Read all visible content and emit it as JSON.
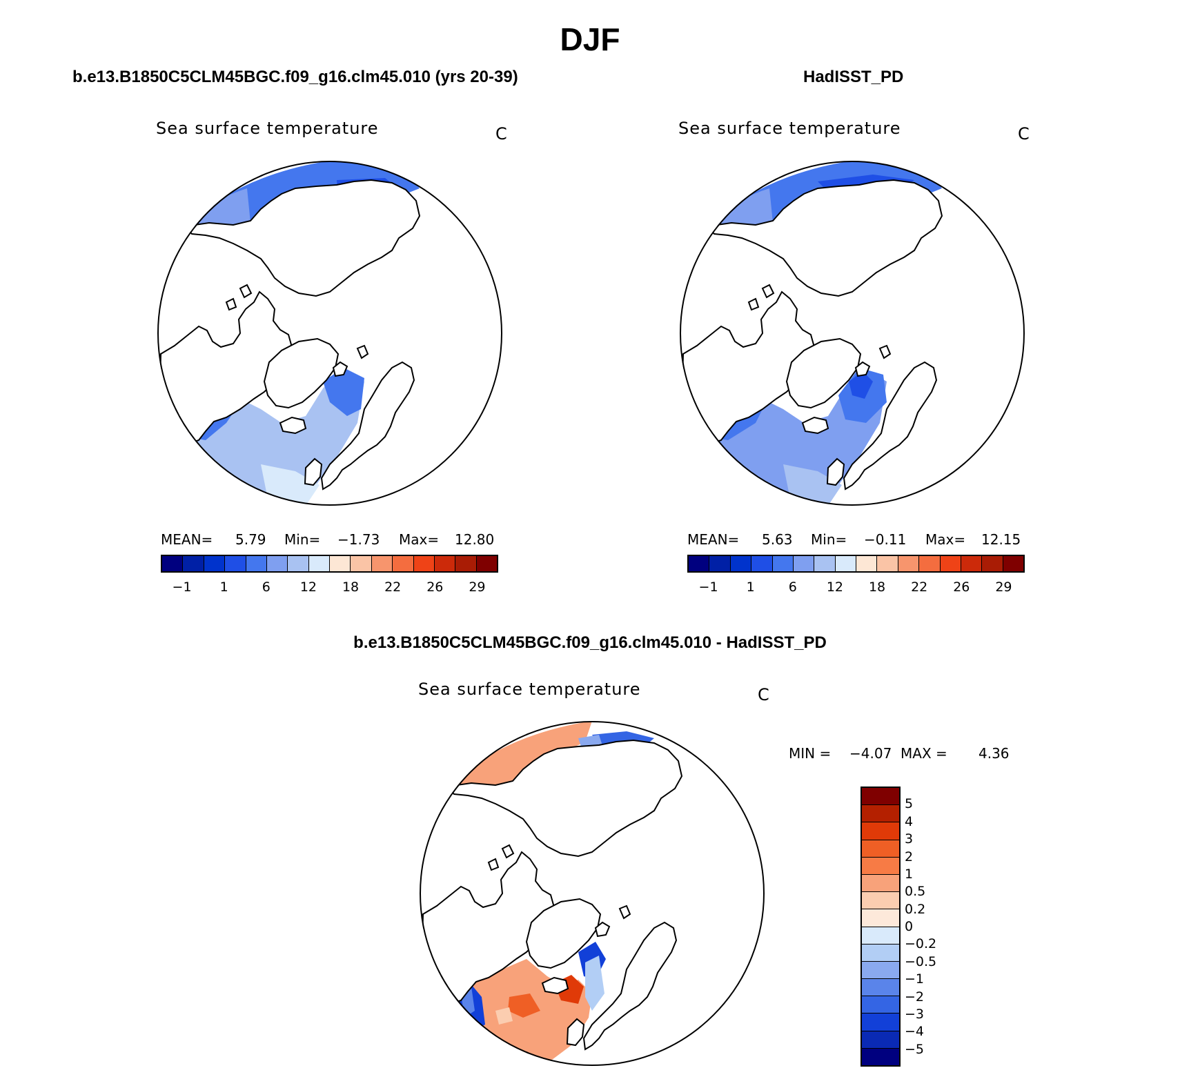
{
  "figure": {
    "title": "DJF",
    "diff_title": "b.e13.B1850C5CLM45BGC.f09_g16.clm45.010 - HadISST_PD"
  },
  "panels": {
    "left": {
      "title": "b.e13.B1850C5CLM45BGC.f09_g16.clm45.010 (yrs 20-39)",
      "variable_label": "Sea surface temperature",
      "units": "C",
      "mean_label": "MEAN=",
      "mean_value": "5.79",
      "min_label": "Min=",
      "min_value": "−1.73",
      "max_label": "Max=",
      "max_value": "12.80"
    },
    "right": {
      "title": "HadISST_PD",
      "variable_label": "Sea surface temperature",
      "units": "C",
      "mean_label": "MEAN=",
      "mean_value": "5.63",
      "min_label": "Min=",
      "min_value": "−0.11",
      "max_label": "Max=",
      "max_value": "12.15"
    },
    "diff": {
      "variable_label": "Sea surface temperature",
      "units": "C",
      "min_label": "MIN =",
      "min_value": "−4.07",
      "max_label": "MAX =",
      "max_value": "4.36"
    }
  },
  "colorbars": {
    "absolute": {
      "colors": [
        "#00007f",
        "#0020a6",
        "#0033cc",
        "#1f4fe6",
        "#4477ee",
        "#7f9ff0",
        "#a9c2f2",
        "#d9eafb",
        "#fde7d5",
        "#fac4a6",
        "#f7956d",
        "#f46d3f",
        "#ef4317",
        "#cc2a0a",
        "#a91c05",
        "#7f0000"
      ],
      "tick_labels": [
        "−1",
        "1",
        "6",
        "12",
        "18",
        "22",
        "26",
        "29"
      ]
    },
    "difference": {
      "colors": [
        "#7f0000",
        "#b42000",
        "#e03a08",
        "#ef5f25",
        "#f77b45",
        "#f8a27a",
        "#fbcdb0",
        "#fde9da",
        "#d9eafb",
        "#b2cef5",
        "#8aa9ef",
        "#5a84ea",
        "#3465e4",
        "#1240d8",
        "#0a2ab4",
        "#00007f"
      ],
      "tick_labels": [
        "5",
        "4",
        "3",
        "2",
        "1",
        "0.5",
        "0.2",
        "0",
        "−0.2",
        "−0.5",
        "−1",
        "−2",
        "−3",
        "−4",
        "−5"
      ]
    }
  },
  "map": {
    "projection": "north polar stereographic",
    "legend": "right"
  }
}
